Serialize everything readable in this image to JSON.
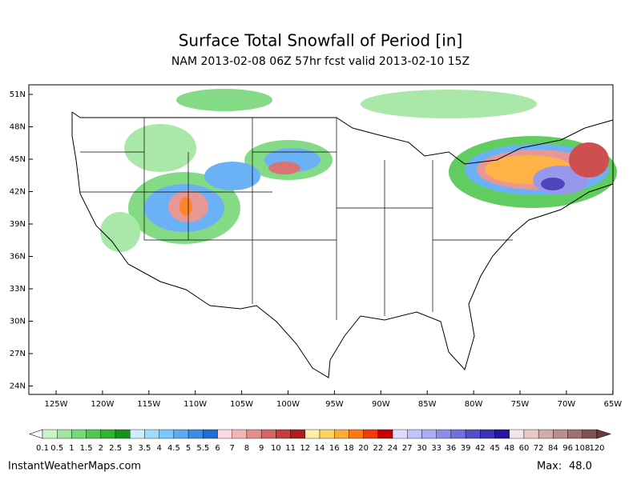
{
  "header": {
    "title": "Surface Total Snowfall of Period [in]",
    "subtitle": "NAM 2013-02-08 06Z 57hr fcst valid 2013-02-10 15Z"
  },
  "map": {
    "lat_labels": [
      "51N",
      "48N",
      "45N",
      "42N",
      "39N",
      "36N",
      "33N",
      "30N",
      "27N",
      "24N"
    ],
    "lon_labels": [
      "125W",
      "120W",
      "115W",
      "110W",
      "105W",
      "100W",
      "95W",
      "90W",
      "85W",
      "80W",
      "75W",
      "70W",
      "65W"
    ]
  },
  "colorbar": {
    "labels": [
      "0.1",
      "0.5",
      "1",
      "1.5",
      "2",
      "2.5",
      "3",
      "3.5",
      "4",
      "4.5",
      "5",
      "5.5",
      "6",
      "7",
      "8",
      "9",
      "10",
      "11",
      "12",
      "14",
      "16",
      "18",
      "20",
      "22",
      "24",
      "27",
      "30",
      "33",
      "36",
      "39",
      "42",
      "45",
      "48",
      "60",
      "72",
      "84",
      "96",
      "108",
      "120"
    ],
    "colors": [
      "#c8f5c8",
      "#a0e6a0",
      "#78d778",
      "#50c850",
      "#30b430",
      "#149614",
      "#c8f0ff",
      "#a0dcff",
      "#78c8ff",
      "#5aaaf5",
      "#3c8ce6",
      "#1e6ed2",
      "#ffdcdc",
      "#f5b4b4",
      "#e68c8c",
      "#d76464",
      "#c83c3c",
      "#aa1e1e",
      "#fff0a0",
      "#ffd264",
      "#ffaa32",
      "#ff7814",
      "#f03c0a",
      "#c80000",
      "#dcdcff",
      "#c3c3ff",
      "#aaaaf5",
      "#8c8ceb",
      "#7070dc",
      "#5050c8",
      "#3c32b4",
      "#2814a0",
      "#f5e6e6",
      "#e6c8c8",
      "#d2aaaa",
      "#be8c8c",
      "#a06e6e",
      "#825050"
    ],
    "under_color": "#ffffff",
    "over_color": "#643c3c"
  },
  "footer": {
    "site": "InstantWeatherMaps.com",
    "max_label": "Max:",
    "max_value": "48.0"
  }
}
